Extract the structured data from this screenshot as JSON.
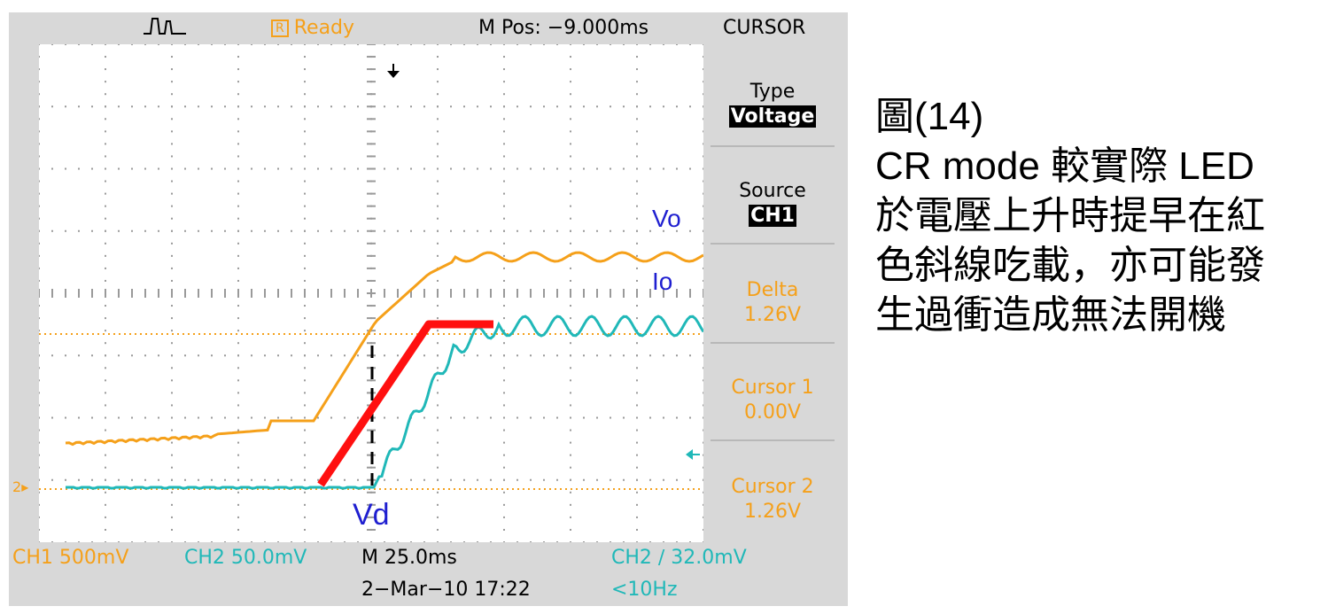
{
  "scope": {
    "header": {
      "trigger_glyph": "⎍⎍",
      "run_state_badge": "R",
      "run_state": "Ready",
      "m_pos": "M Pos: −9.000ms",
      "menu_title": "CURSOR"
    },
    "menu": {
      "type_label": "Type",
      "type_value": "Voltage",
      "source_label": "Source",
      "source_value": "CH1",
      "delta_label": "Delta",
      "delta_value": "1.26V",
      "cursor1_label": "Cursor 1",
      "cursor1_value": "0.00V",
      "cursor2_label": "Cursor 2",
      "cursor2_value": "1.26V"
    },
    "footer": {
      "ch1_scale": "CH1  500mV",
      "ch2_scale": "CH2  50.0mV",
      "timebase": "M 25.0ms",
      "trigger_setting": "CH2 ∕ 32.0mV",
      "date_time": "2−Mar−10 17:22",
      "frequency": "<10Hz"
    },
    "screen": {
      "ch2_marker": "2",
      "label_vo": "Vo",
      "label_io": "Io",
      "label_vd": "Vd"
    },
    "colors": {
      "ch1": "#f5a01a",
      "ch2": "#20b8b8",
      "annotation": "#ff1010",
      "label": "#1f1fd0",
      "menu_orange": "#f5a01a"
    }
  },
  "figure_caption": {
    "lines": [
      "圖(14)",
      "CR mode 較實際 LED",
      "於電壓上升時提早在紅",
      "色斜線吃載，亦可能發",
      "生過衝造成無法開機"
    ]
  }
}
